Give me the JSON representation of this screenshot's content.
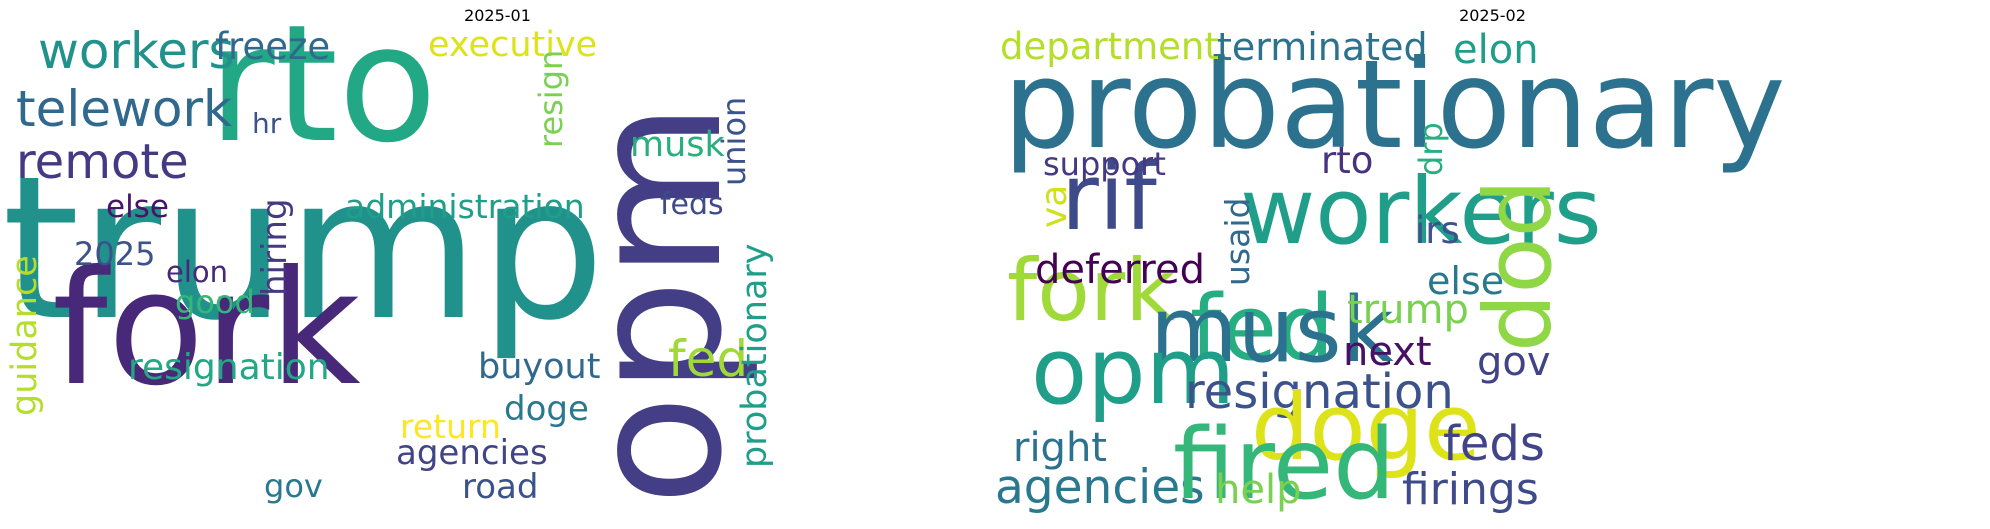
{
  "panels": [
    {
      "title": "2025-01",
      "words": {
        "trump": {
          "text": "trump",
          "color": "#21918c"
        },
        "rto": {
          "text": "rto",
          "color": "#22a884"
        },
        "opm": {
          "text": "opm",
          "color": "#433e85"
        },
        "fork": {
          "text": "fork",
          "color": "#482878"
        },
        "workers": {
          "text": "workers",
          "color": "#21918c"
        },
        "freeze": {
          "text": "freeze",
          "color": "#31688e"
        },
        "telework": {
          "text": "telework",
          "color": "#31688e"
        },
        "remote": {
          "text": "remote",
          "color": "#443983"
        },
        "executive": {
          "text": "executive",
          "color": "#dde318"
        },
        "resign": {
          "text": "resign",
          "color": "#7ad151"
        },
        "hr": {
          "text": "hr",
          "color": "#3b528b"
        },
        "hiring": {
          "text": "hiring",
          "color": "#443a83"
        },
        "else": {
          "text": "else",
          "color": "#481467"
        },
        "administration": {
          "text": "administration",
          "color": "#1f9e89"
        },
        "musk": {
          "text": "musk",
          "color": "#29af7f"
        },
        "union": {
          "text": "union",
          "color": "#3b528b"
        },
        "feds": {
          "text": "feds",
          "color": "#3e4a89"
        },
        "y2025": {
          "text": "2025",
          "color": "#3b528b"
        },
        "elon": {
          "text": "elon",
          "color": "#482878"
        },
        "good": {
          "text": "good",
          "color": "#35b779"
        },
        "guidance": {
          "text": "guidance",
          "color": "#b5de2b"
        },
        "resignation": {
          "text": "resignation",
          "color": "#22a884"
        },
        "buyout": {
          "text": "buyout",
          "color": "#31688e"
        },
        "fed": {
          "text": "fed",
          "color": "#a0da39"
        },
        "probationary": {
          "text": "probationary",
          "color": "#1f9e89"
        },
        "doge": {
          "text": "doge",
          "color": "#2a788e"
        },
        "return": {
          "text": "return",
          "color": "#fde725"
        },
        "agencies": {
          "text": "agencies",
          "color": "#414487"
        },
        "gov": {
          "text": "gov",
          "color": "#2a788e"
        },
        "road": {
          "text": "road",
          "color": "#3b528b"
        }
      }
    },
    {
      "title": "2025-02",
      "words": {
        "probationary": {
          "text": "probationary",
          "color": "#2c728e"
        },
        "department": {
          "text": "department",
          "color": "#b5de2b"
        },
        "terminated": {
          "text": "terminated",
          "color": "#2c728e"
        },
        "elon": {
          "text": "elon",
          "color": "#1f9e89"
        },
        "rif": {
          "text": "rif",
          "color": "#3e4a89"
        },
        "workers": {
          "text": "workers",
          "color": "#1f9e89"
        },
        "dod": {
          "text": "dod",
          "color": "#8fd744"
        },
        "va": {
          "text": "va",
          "color": "#d0e11c"
        },
        "usaid": {
          "text": "usaid",
          "color": "#31688e"
        },
        "support": {
          "text": "support",
          "color": "#443983"
        },
        "rto": {
          "text": "rto",
          "color": "#46327e"
        },
        "drp": {
          "text": "drp",
          "color": "#29af7f"
        },
        "irs": {
          "text": "irs",
          "color": "#3b528b"
        },
        "fork": {
          "text": "fork",
          "color": "#a0da39"
        },
        "deferred": {
          "text": "deferred",
          "color": "#440154"
        },
        "else": {
          "text": "else",
          "color": "#2a788e"
        },
        "fed": {
          "text": "fed",
          "color": "#26ad81"
        },
        "musk": {
          "text": "musk",
          "color": "#2c728e"
        },
        "trump": {
          "text": "trump",
          "color": "#7ad151"
        },
        "opm": {
          "text": "opm",
          "color": "#1f9e89"
        },
        "next": {
          "text": "next",
          "color": "#471063"
        },
        "gov": {
          "text": "gov",
          "color": "#414487"
        },
        "resignation": {
          "text": "resignation",
          "color": "#3b528b"
        },
        "doge": {
          "text": "doge",
          "color": "#dde318"
        },
        "feds": {
          "text": "feds",
          "color": "#414487"
        },
        "right": {
          "text": "right",
          "color": "#2c728e"
        },
        "agencies": {
          "text": "agencies",
          "color": "#2a788e"
        },
        "fired": {
          "text": "fired",
          "color": "#35b779"
        },
        "help": {
          "text": "help",
          "color": "#7ad151"
        },
        "firings": {
          "text": "firings",
          "color": "#3e4a89"
        }
      }
    }
  ]
}
